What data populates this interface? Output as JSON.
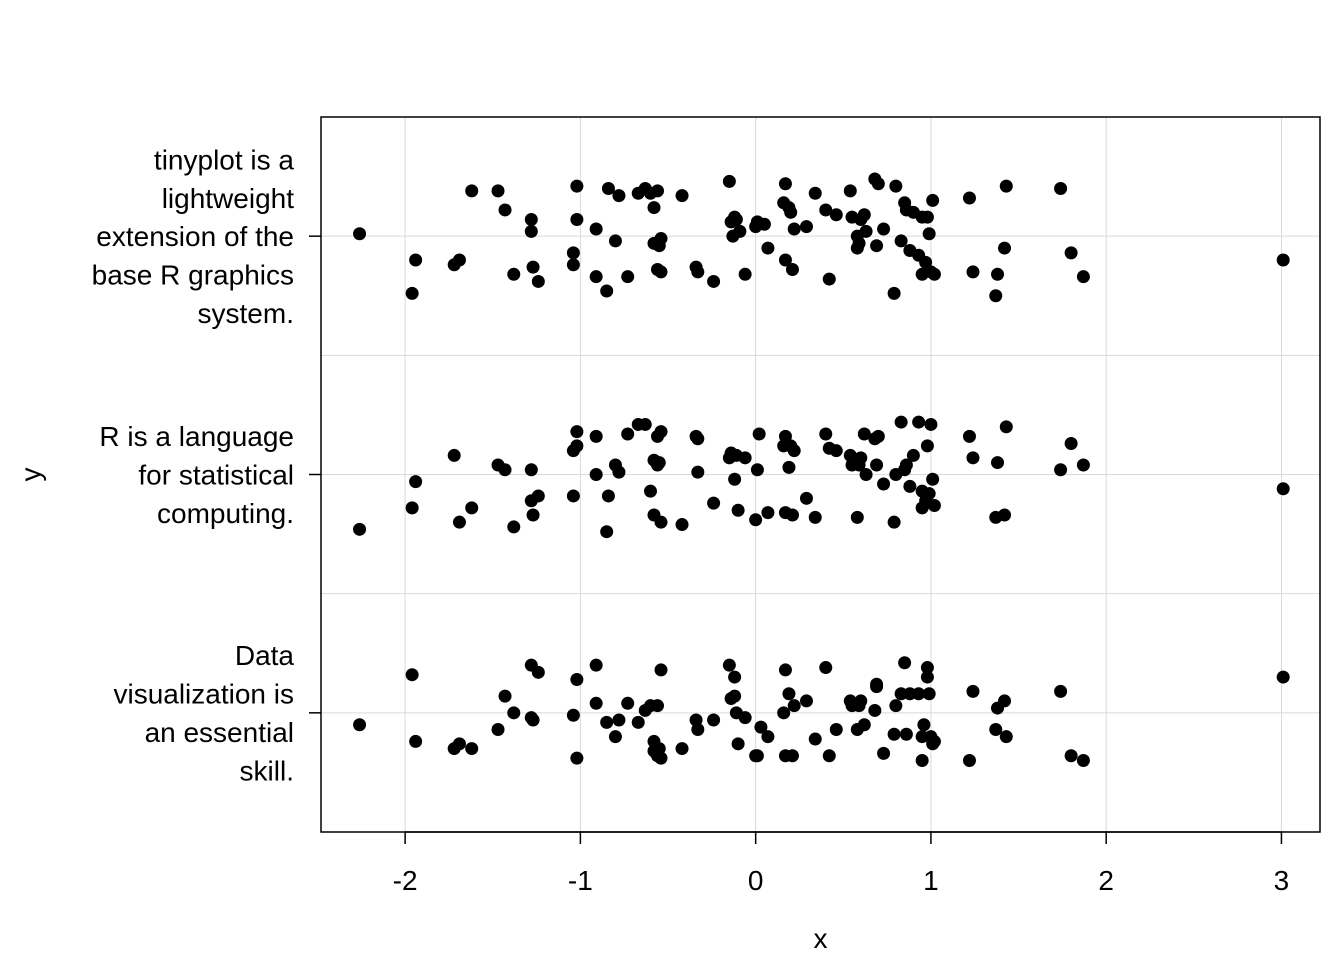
{
  "chart_data": {
    "type": "scatter",
    "title": "",
    "xlabel": "x",
    "ylabel": "y",
    "xlim": [
      -2.48,
      3.22
    ],
    "x_ticks": [
      -2,
      -1,
      0,
      1,
      2,
      3
    ],
    "x_tick_labels": [
      "-2",
      "-1",
      "0",
      "1",
      "2",
      "3"
    ],
    "grid": true,
    "categories": [
      {
        "key": "data",
        "lines": [
          "Data",
          "visualization is",
          "an essential",
          "skill."
        ]
      },
      {
        "key": "r",
        "lines": [
          "R is a language",
          "for statistical",
          "computing."
        ]
      },
      {
        "key": "tinyplot",
        "lines": [
          "tinyplot is a",
          "lightweight",
          "extension of the",
          "base R graphics",
          "system."
        ]
      }
    ],
    "series": [
      {
        "category": "tinyplot",
        "points": [
          [
            -2.26,
            0.01
          ],
          [
            -1.96,
            -0.24
          ],
          [
            -1.94,
            -0.1
          ],
          [
            -1.72,
            -0.12
          ],
          [
            -1.69,
            -0.1
          ],
          [
            -1.62,
            0.19
          ],
          [
            -1.47,
            0.19
          ],
          [
            -1.43,
            0.11
          ],
          [
            -1.38,
            -0.16
          ],
          [
            -1.28,
            0.07
          ],
          [
            -1.28,
            0.02
          ],
          [
            -1.27,
            -0.13
          ],
          [
            -1.24,
            -0.19
          ],
          [
            -1.04,
            -0.07
          ],
          [
            -1.04,
            -0.12
          ],
          [
            -1.02,
            0.21
          ],
          [
            -1.02,
            0.07
          ],
          [
            -0.91,
            0.03
          ],
          [
            -0.91,
            -0.17
          ],
          [
            -0.85,
            -0.23
          ],
          [
            -0.84,
            0.2
          ],
          [
            -0.8,
            -0.02
          ],
          [
            -0.78,
            0.17
          ],
          [
            -0.73,
            -0.17
          ],
          [
            -0.67,
            0.18
          ],
          [
            -0.63,
            0.2
          ],
          [
            -0.6,
            0.18
          ],
          [
            -0.58,
            0.12
          ],
          [
            -0.58,
            -0.03
          ],
          [
            -0.56,
            0.19
          ],
          [
            -0.56,
            -0.14
          ],
          [
            -0.55,
            -0.04
          ],
          [
            -0.54,
            -0.15
          ],
          [
            -0.54,
            -0.01
          ],
          [
            -0.42,
            0.17
          ],
          [
            -0.34,
            -0.13
          ],
          [
            -0.33,
            -0.15
          ],
          [
            -0.24,
            -0.19
          ],
          [
            -0.15,
            0.23
          ],
          [
            -0.14,
            0.06
          ],
          [
            -0.13,
            0.0
          ],
          [
            -0.12,
            0.08
          ],
          [
            -0.11,
            0.07
          ],
          [
            -0.09,
            0.02
          ],
          [
            -0.06,
            -0.16
          ],
          [
            0.0,
            0.04
          ],
          [
            0.01,
            0.06
          ],
          [
            0.05,
            0.05
          ],
          [
            0.07,
            -0.05
          ],
          [
            0.16,
            0.14
          ],
          [
            0.17,
            0.22
          ],
          [
            0.17,
            -0.1
          ],
          [
            0.19,
            0.12
          ],
          [
            0.2,
            0.1
          ],
          [
            0.21,
            -0.14
          ],
          [
            0.22,
            0.03
          ],
          [
            0.29,
            0.04
          ],
          [
            0.34,
            0.18
          ],
          [
            0.4,
            0.11
          ],
          [
            0.42,
            -0.18
          ],
          [
            0.46,
            0.09
          ],
          [
            0.54,
            0.19
          ],
          [
            0.55,
            0.08
          ],
          [
            0.58,
            0.0
          ],
          [
            0.58,
            -0.05
          ],
          [
            0.59,
            -0.03
          ],
          [
            0.6,
            0.07
          ],
          [
            0.62,
            0.09
          ],
          [
            0.63,
            0.02
          ],
          [
            0.68,
            0.24
          ],
          [
            0.69,
            -0.04
          ],
          [
            0.7,
            0.22
          ],
          [
            0.73,
            0.03
          ],
          [
            0.79,
            -0.24
          ],
          [
            0.8,
            0.21
          ],
          [
            0.83,
            -0.02
          ],
          [
            0.85,
            0.14
          ],
          [
            0.86,
            0.11
          ],
          [
            0.88,
            -0.06
          ],
          [
            0.9,
            0.1
          ],
          [
            0.93,
            -0.08
          ],
          [
            0.95,
            0.08
          ],
          [
            0.95,
            -0.16
          ],
          [
            0.97,
            -0.11
          ],
          [
            0.98,
            0.08
          ],
          [
            0.99,
            0.01
          ],
          [
            1.0,
            -0.15
          ],
          [
            1.01,
            0.15
          ],
          [
            1.02,
            -0.16
          ],
          [
            1.22,
            0.16
          ],
          [
            1.24,
            -0.15
          ],
          [
            1.37,
            -0.25
          ],
          [
            1.38,
            -0.16
          ],
          [
            1.42,
            -0.05
          ],
          [
            1.43,
            0.21
          ],
          [
            1.74,
            0.2
          ],
          [
            1.8,
            -0.07
          ],
          [
            1.87,
            -0.17
          ],
          [
            3.01,
            -0.1
          ]
        ]
      },
      {
        "category": "r",
        "points": [
          [
            -2.26,
            -0.23
          ],
          [
            -1.96,
            -0.14
          ],
          [
            -1.94,
            -0.03
          ],
          [
            -1.72,
            0.08
          ],
          [
            -1.69,
            -0.2
          ],
          [
            -1.62,
            -0.14
          ],
          [
            -1.47,
            0.04
          ],
          [
            -1.43,
            0.02
          ],
          [
            -1.38,
            -0.22
          ],
          [
            -1.28,
            0.02
          ],
          [
            -1.28,
            -0.11
          ],
          [
            -1.27,
            -0.17
          ],
          [
            -1.24,
            -0.09
          ],
          [
            -1.04,
            -0.09
          ],
          [
            -1.04,
            0.1
          ],
          [
            -1.02,
            0.12
          ],
          [
            -1.02,
            0.18
          ],
          [
            -0.91,
            0.16
          ],
          [
            -0.91,
            0.0
          ],
          [
            -0.85,
            -0.24
          ],
          [
            -0.84,
            -0.09
          ],
          [
            -0.8,
            0.04
          ],
          [
            -0.78,
            0.01
          ],
          [
            -0.73,
            0.17
          ],
          [
            -0.67,
            0.21
          ],
          [
            -0.63,
            0.21
          ],
          [
            -0.6,
            -0.07
          ],
          [
            -0.58,
            0.06
          ],
          [
            -0.58,
            -0.17
          ],
          [
            -0.56,
            0.16
          ],
          [
            -0.56,
            0.04
          ],
          [
            -0.55,
            0.05
          ],
          [
            -0.54,
            -0.2
          ],
          [
            -0.54,
            0.18
          ],
          [
            -0.42,
            -0.21
          ],
          [
            -0.34,
            0.16
          ],
          [
            -0.33,
            0.15
          ],
          [
            -0.33,
            0.01
          ],
          [
            -0.24,
            -0.12
          ],
          [
            -0.15,
            0.07
          ],
          [
            -0.14,
            0.09
          ],
          [
            -0.12,
            -0.02
          ],
          [
            -0.11,
            0.08
          ],
          [
            -0.1,
            -0.15
          ],
          [
            -0.06,
            0.07
          ],
          [
            0.0,
            -0.19
          ],
          [
            0.01,
            0.02
          ],
          [
            0.02,
            0.17
          ],
          [
            0.07,
            -0.16
          ],
          [
            0.16,
            0.12
          ],
          [
            0.17,
            0.16
          ],
          [
            0.17,
            -0.16
          ],
          [
            0.19,
            0.03
          ],
          [
            0.2,
            0.12
          ],
          [
            0.21,
            -0.17
          ],
          [
            0.22,
            0.1
          ],
          [
            0.29,
            -0.1
          ],
          [
            0.34,
            -0.18
          ],
          [
            0.4,
            0.17
          ],
          [
            0.42,
            0.11
          ],
          [
            0.46,
            0.1
          ],
          [
            0.54,
            0.08
          ],
          [
            0.55,
            0.04
          ],
          [
            0.58,
            -0.18
          ],
          [
            0.59,
            0.04
          ],
          [
            0.6,
            0.07
          ],
          [
            0.62,
            0.17
          ],
          [
            0.63,
            0.0
          ],
          [
            0.68,
            0.15
          ],
          [
            0.69,
            0.04
          ],
          [
            0.7,
            0.16
          ],
          [
            0.73,
            -0.04
          ],
          [
            0.79,
            -0.2
          ],
          [
            0.8,
            0.0
          ],
          [
            0.83,
            0.22
          ],
          [
            0.85,
            0.02
          ],
          [
            0.86,
            0.04
          ],
          [
            0.88,
            -0.05
          ],
          [
            0.9,
            0.08
          ],
          [
            0.93,
            0.22
          ],
          [
            0.95,
            -0.07
          ],
          [
            0.95,
            -0.14
          ],
          [
            0.97,
            -0.11
          ],
          [
            0.98,
            0.12
          ],
          [
            0.99,
            -0.08
          ],
          [
            1.0,
            0.21
          ],
          [
            1.01,
            -0.02
          ],
          [
            1.02,
            -0.13
          ],
          [
            1.22,
            0.16
          ],
          [
            1.24,
            0.07
          ],
          [
            1.37,
            -0.18
          ],
          [
            1.38,
            0.05
          ],
          [
            1.42,
            -0.17
          ],
          [
            1.43,
            0.2
          ],
          [
            1.74,
            0.02
          ],
          [
            1.8,
            0.13
          ],
          [
            1.87,
            0.04
          ],
          [
            3.01,
            -0.06
          ]
        ]
      },
      {
        "category": "data",
        "points": [
          [
            -2.26,
            -0.05
          ],
          [
            -1.96,
            0.16
          ],
          [
            -1.94,
            -0.12
          ],
          [
            -1.72,
            -0.15
          ],
          [
            -1.69,
            -0.13
          ],
          [
            -1.62,
            -0.15
          ],
          [
            -1.47,
            -0.07
          ],
          [
            -1.43,
            0.07
          ],
          [
            -1.38,
            0.0
          ],
          [
            -1.28,
            0.2
          ],
          [
            -1.28,
            -0.02
          ],
          [
            -1.27,
            -0.03
          ],
          [
            -1.24,
            0.17
          ],
          [
            -1.04,
            -0.01
          ],
          [
            -1.02,
            0.14
          ],
          [
            -1.02,
            -0.19
          ],
          [
            -0.91,
            0.04
          ],
          [
            -0.91,
            0.2
          ],
          [
            -0.85,
            -0.04
          ],
          [
            -0.8,
            -0.1
          ],
          [
            -0.78,
            -0.03
          ],
          [
            -0.73,
            0.04
          ],
          [
            -0.67,
            -0.04
          ],
          [
            -0.63,
            0.01
          ],
          [
            -0.6,
            0.03
          ],
          [
            -0.58,
            -0.12
          ],
          [
            -0.58,
            -0.16
          ],
          [
            -0.56,
            0.03
          ],
          [
            -0.56,
            -0.18
          ],
          [
            -0.55,
            -0.15
          ],
          [
            -0.54,
            -0.19
          ],
          [
            -0.54,
            0.18
          ],
          [
            -0.42,
            -0.15
          ],
          [
            -0.34,
            -0.03
          ],
          [
            -0.33,
            -0.07
          ],
          [
            -0.24,
            -0.03
          ],
          [
            -0.15,
            0.2
          ],
          [
            -0.14,
            0.06
          ],
          [
            -0.12,
            0.07
          ],
          [
            -0.12,
            0.15
          ],
          [
            -0.1,
            -0.13
          ],
          [
            -0.11,
            0.0
          ],
          [
            -0.06,
            -0.02
          ],
          [
            0.0,
            -0.18
          ],
          [
            0.01,
            -0.18
          ],
          [
            0.03,
            -0.06
          ],
          [
            0.07,
            -0.1
          ],
          [
            0.16,
            0.0
          ],
          [
            0.17,
            -0.18
          ],
          [
            0.17,
            0.18
          ],
          [
            0.19,
            0.08
          ],
          [
            0.21,
            -0.18
          ],
          [
            0.22,
            0.03
          ],
          [
            0.29,
            0.05
          ],
          [
            0.34,
            -0.11
          ],
          [
            0.4,
            0.19
          ],
          [
            0.42,
            -0.18
          ],
          [
            0.46,
            -0.07
          ],
          [
            0.54,
            0.05
          ],
          [
            0.55,
            0.03
          ],
          [
            0.58,
            -0.07
          ],
          [
            0.59,
            0.03
          ],
          [
            0.6,
            0.05
          ],
          [
            0.62,
            -0.05
          ],
          [
            0.68,
            0.01
          ],
          [
            0.69,
            0.11
          ],
          [
            0.69,
            0.12
          ],
          [
            0.73,
            -0.17
          ],
          [
            0.79,
            -0.09
          ],
          [
            0.8,
            0.03
          ],
          [
            0.83,
            0.08
          ],
          [
            0.85,
            0.21
          ],
          [
            0.86,
            -0.09
          ],
          [
            0.88,
            0.08
          ],
          [
            0.93,
            0.08
          ],
          [
            0.95,
            -0.1
          ],
          [
            0.95,
            -0.2
          ],
          [
            0.96,
            -0.05
          ],
          [
            0.98,
            0.15
          ],
          [
            0.98,
            0.19
          ],
          [
            0.99,
            0.08
          ],
          [
            1.0,
            -0.1
          ],
          [
            1.01,
            -0.13
          ],
          [
            1.02,
            -0.12
          ],
          [
            1.22,
            -0.2
          ],
          [
            1.24,
            0.09
          ],
          [
            1.37,
            -0.07
          ],
          [
            1.38,
            0.02
          ],
          [
            1.42,
            0.05
          ],
          [
            1.43,
            -0.1
          ],
          [
            1.74,
            0.09
          ],
          [
            1.8,
            -0.18
          ],
          [
            1.87,
            -0.2
          ],
          [
            3.01,
            0.15
          ]
        ]
      }
    ]
  }
}
